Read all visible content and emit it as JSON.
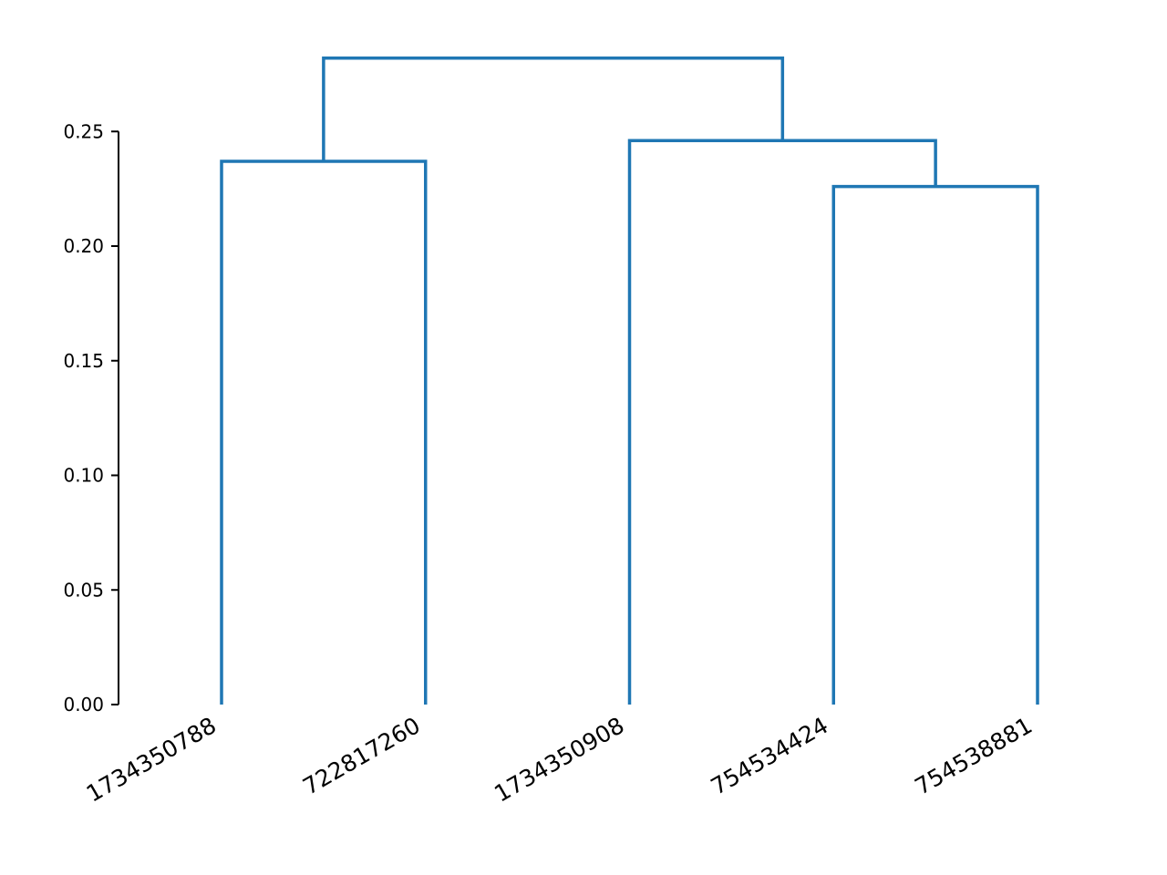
{
  "chart_data": {
    "type": "dendrogram",
    "title": "",
    "xlabel": "",
    "ylabel": "",
    "ylim": [
      0,
      0.28
    ],
    "y_ticks": [
      "0.00",
      "0.05",
      "0.10",
      "0.15",
      "0.20",
      "0.25"
    ],
    "y_tick_values": [
      0,
      0.05,
      0.1,
      0.15,
      0.2,
      0.25
    ],
    "grid": false,
    "link_color": "#1f77b4",
    "leaves": [
      "1734350788",
      "722817260",
      "1734350908",
      "754534424",
      "754538881"
    ],
    "merges": [
      {
        "left": "leaf:3",
        "right": "leaf:4",
        "height": 0.226
      },
      {
        "left": "leaf:0",
        "right": "leaf:1",
        "height": 0.237
      },
      {
        "left": "leaf:2",
        "right": "node:0",
        "height": 0.246
      },
      {
        "left": "node:1",
        "right": "node:2",
        "height": 0.282
      }
    ]
  }
}
